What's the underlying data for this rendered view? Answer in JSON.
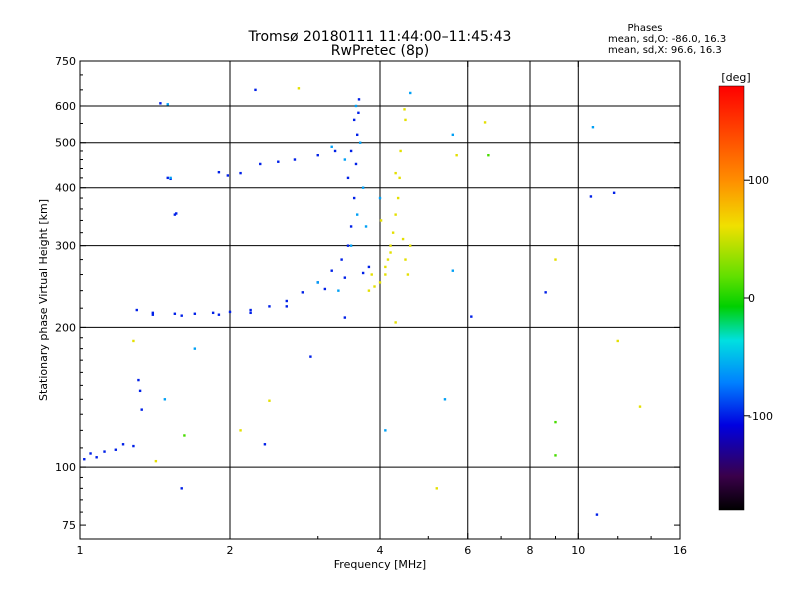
{
  "header": {
    "title_line1": "Tromsø 20180111 11:44:00–11:45:43",
    "title_line2": "RwPretec (8p)",
    "stats_title": "Phases",
    "stats_line1": "mean, sd,O: -86.0, 16.3",
    "stats_line2": "mean, sd,X:  96.6, 16.3"
  },
  "chart_data": {
    "type": "scatter",
    "xlabel": "Frequency [MHz]",
    "ylabel": "Stationary phase Virtual Height [km]",
    "x_scale": "log",
    "y_scale": "log",
    "xlim": [
      1,
      16
    ],
    "ylim": [
      70,
      750
    ],
    "x_ticks": [
      1,
      2,
      4,
      6,
      8,
      10,
      16
    ],
    "x_tick_labels": [
      "1",
      "2",
      "4",
      "6",
      "8",
      "10",
      "16"
    ],
    "y_ticks": [
      75,
      100,
      200,
      300,
      400,
      500,
      600,
      750
    ],
    "y_tick_labels": [
      "75",
      "100",
      "200",
      "300",
      "400",
      "500",
      "600",
      "750"
    ],
    "grid_x": [
      2,
      4,
      6,
      8,
      10
    ],
    "grid_y": [
      100,
      200,
      300,
      400,
      500,
      600
    ],
    "colorbar": {
      "label": "[deg]",
      "range": [
        -180,
        180
      ],
      "ticks": [
        100,
        0,
        -100
      ],
      "tick_labels": [
        "100",
        "0",
        "-100"
      ]
    },
    "series": [
      {
        "color_deg": -100,
        "points": [
          [
            1.02,
            104
          ],
          [
            1.05,
            107
          ],
          [
            1.08,
            105
          ],
          [
            1.12,
            108
          ],
          [
            1.18,
            109
          ],
          [
            1.22,
            112
          ],
          [
            1.28,
            111
          ],
          [
            1.31,
            154
          ],
          [
            1.32,
            146
          ],
          [
            1.33,
            133
          ],
          [
            1.5,
            420
          ],
          [
            1.52,
            418
          ],
          [
            1.55,
            350
          ],
          [
            1.56,
            352
          ],
          [
            1.3,
            218
          ],
          [
            1.4,
            215
          ],
          [
            1.55,
            214
          ],
          [
            1.7,
            214
          ],
          [
            1.85,
            215
          ],
          [
            2.0,
            216
          ],
          [
            2.2,
            218
          ],
          [
            2.4,
            222
          ],
          [
            2.6,
            228
          ],
          [
            2.8,
            238
          ],
          [
            3.0,
            250
          ],
          [
            3.2,
            265
          ],
          [
            3.35,
            280
          ],
          [
            3.45,
            300
          ],
          [
            3.5,
            330
          ],
          [
            3.55,
            380
          ],
          [
            3.58,
            450
          ],
          [
            3.6,
            520
          ],
          [
            3.62,
            580
          ],
          [
            3.63,
            620
          ],
          [
            3.55,
            560
          ],
          [
            3.5,
            480
          ],
          [
            3.45,
            420
          ],
          [
            3.25,
            480
          ],
          [
            3.0,
            470
          ],
          [
            2.7,
            460
          ],
          [
            2.5,
            455
          ],
          [
            2.3,
            450
          ],
          [
            2.1,
            430
          ],
          [
            1.98,
            425
          ],
          [
            1.9,
            432
          ],
          [
            1.4,
            213
          ],
          [
            1.6,
            212
          ],
          [
            1.9,
            213
          ],
          [
            2.2,
            215
          ],
          [
            2.6,
            222
          ],
          [
            3.1,
            242
          ],
          [
            3.4,
            256
          ],
          [
            3.7,
            262
          ],
          [
            3.8,
            270
          ],
          [
            2.25,
            650
          ],
          [
            1.45,
            608
          ],
          [
            1.6,
            90
          ],
          [
            2.35,
            112
          ],
          [
            2.9,
            173
          ],
          [
            3.4,
            210
          ],
          [
            6.1,
            211
          ],
          [
            8.6,
            238
          ],
          [
            10.6,
            383
          ],
          [
            11.8,
            390
          ],
          [
            10.9,
            79
          ]
        ]
      },
      {
        "color_deg": -60,
        "points": [
          [
            1.5,
            605
          ],
          [
            1.52,
            420
          ],
          [
            1.7,
            180
          ],
          [
            1.48,
            140
          ],
          [
            3.0,
            250
          ],
          [
            3.5,
            300
          ],
          [
            3.6,
            350
          ],
          [
            3.7,
            400
          ],
          [
            3.4,
            460
          ],
          [
            3.2,
            490
          ],
          [
            3.3,
            240
          ],
          [
            3.58,
            600
          ],
          [
            3.65,
            500
          ],
          [
            3.75,
            330
          ],
          [
            4.1,
            120
          ],
          [
            4.6,
            640
          ],
          [
            5.4,
            140
          ],
          [
            5.6,
            265
          ],
          [
            5.6,
            520
          ],
          [
            10.7,
            540
          ],
          [
            4.0,
            380
          ]
        ]
      },
      {
        "color_deg": 95,
        "points": [
          [
            4.0,
            250
          ],
          [
            4.1,
            270
          ],
          [
            4.2,
            290
          ],
          [
            4.25,
            320
          ],
          [
            4.3,
            350
          ],
          [
            4.35,
            380
          ],
          [
            4.38,
            420
          ],
          [
            4.4,
            480
          ],
          [
            4.3,
            430
          ],
          [
            4.2,
            300
          ],
          [
            4.1,
            260
          ],
          [
            3.9,
            245
          ],
          [
            3.8,
            240
          ],
          [
            4.45,
            310
          ],
          [
            4.5,
            280
          ],
          [
            4.55,
            260
          ],
          [
            4.6,
            300
          ],
          [
            4.5,
            560
          ],
          [
            4.48,
            590
          ],
          [
            3.85,
            260
          ],
          [
            4.02,
            340
          ],
          [
            4.15,
            280
          ],
          [
            2.75,
            655
          ],
          [
            6.5,
            553
          ],
          [
            9.0,
            280
          ],
          [
            12.0,
            187
          ],
          [
            5.2,
            90
          ],
          [
            4.3,
            205
          ],
          [
            1.28,
            187
          ],
          [
            1.42,
            103
          ],
          [
            2.1,
            120
          ],
          [
            2.4,
            139
          ],
          [
            13.3,
            135
          ],
          [
            5.7,
            470
          ]
        ]
      },
      {
        "color_deg": 30,
        "points": [
          [
            6.6,
            470
          ],
          [
            9.0,
            125
          ],
          [
            9.0,
            106
          ],
          [
            1.62,
            117
          ]
        ]
      }
    ]
  }
}
